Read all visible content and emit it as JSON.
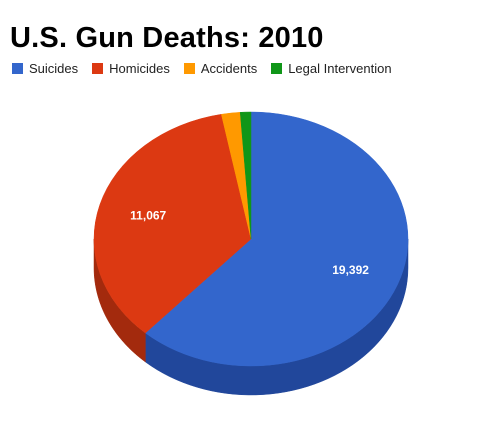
{
  "chart_data": {
    "type": "pie",
    "title": "U.S. Gun Deaths: 2010",
    "three_d": true,
    "legend_position": "top",
    "series": [
      {
        "name": "Suicides",
        "value": 19392,
        "color": "#3366cc",
        "side_color": "#21479b",
        "label": "19,392"
      },
      {
        "name": "Homicides",
        "value": 11067,
        "color": "#dc3912",
        "side_color": "#a32a0d",
        "label": "11,067"
      },
      {
        "name": "Accidents",
        "value": 606,
        "color": "#ff9900",
        "side_color": "#c77700",
        "label": ""
      },
      {
        "name": "Legal Intervention",
        "value": 344,
        "color": "#109618",
        "side_color": "#0b6c11",
        "label": ""
      }
    ]
  }
}
